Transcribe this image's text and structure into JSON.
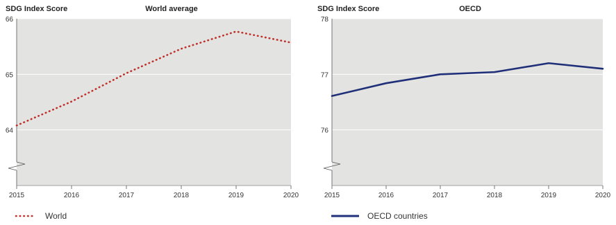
{
  "chart_data": [
    {
      "type": "line",
      "title": "World average",
      "ylabel": "SDG Index Score",
      "xlabel": "",
      "x": [
        "2015",
        "2016",
        "2017",
        "2018",
        "2019",
        "2020"
      ],
      "ylim": [
        63,
        66
      ],
      "yticks": [
        "64",
        "65",
        "66"
      ],
      "axis_break": true,
      "grid": true,
      "background_color": "#e3e3e1",
      "legend_position": "bottom-left",
      "series": [
        {
          "name": "World",
          "values": [
            64.08,
            64.51,
            65.02,
            65.46,
            65.77,
            65.57
          ],
          "color": "#c0302a",
          "style": "dotted"
        }
      ]
    },
    {
      "type": "line",
      "title": "OECD",
      "ylabel": "SDG Index Score",
      "xlabel": "",
      "x": [
        "2015",
        "2016",
        "2017",
        "2018",
        "2019",
        "2020"
      ],
      "ylim": [
        75,
        78
      ],
      "yticks": [
        "76",
        "77",
        "78"
      ],
      "axis_break": true,
      "grid": true,
      "background_color": "#e3e3e1",
      "legend_position": "bottom-left",
      "series": [
        {
          "name": "OECD countries",
          "values": [
            76.61,
            76.84,
            77.0,
            77.04,
            77.2,
            77.1
          ],
          "color": "#1f2f78",
          "style": "solid"
        }
      ]
    }
  ]
}
